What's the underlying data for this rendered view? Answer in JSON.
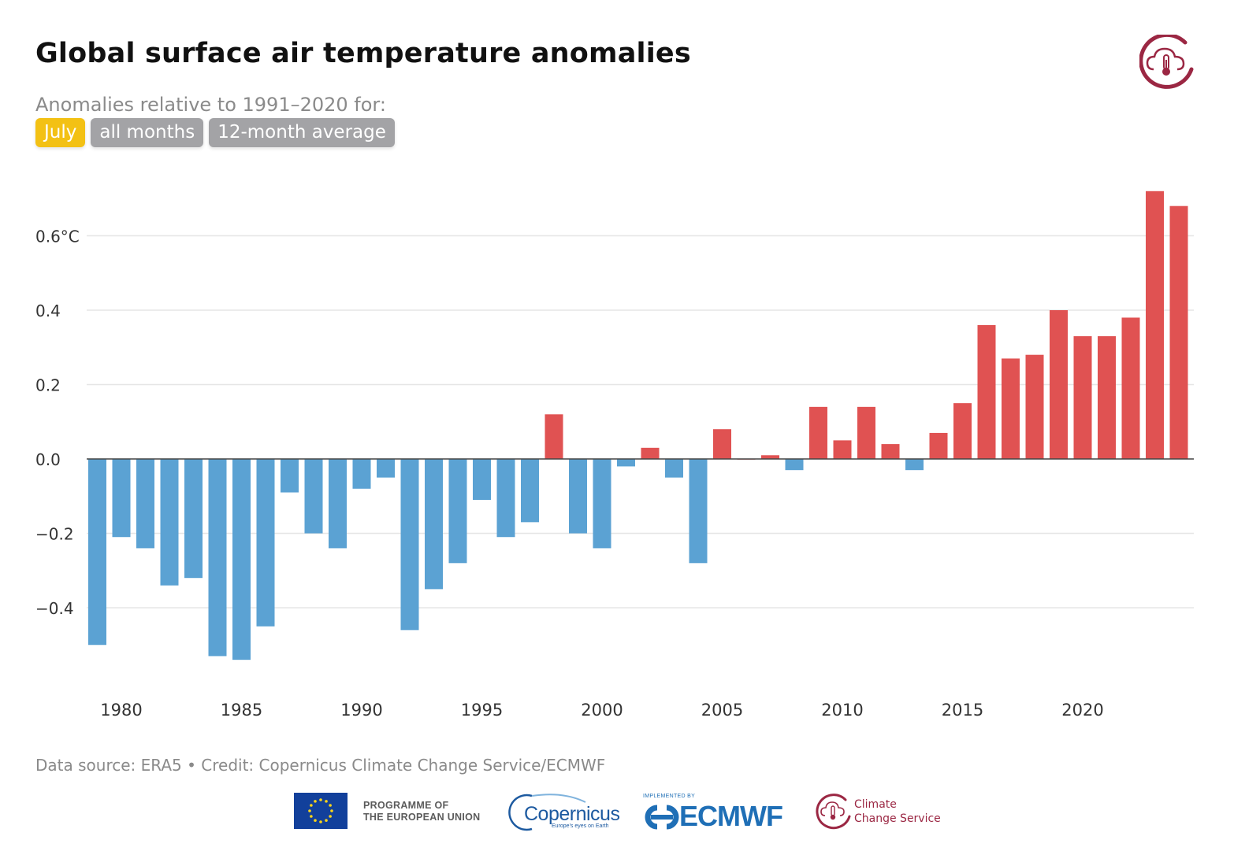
{
  "title": "Global surface air temperature anomalies",
  "subtitle": "Anomalies relative to 1991–2020 for:",
  "toggles": [
    {
      "label": "July",
      "active": true
    },
    {
      "label": "all months",
      "active": false
    },
    {
      "label": "12-month average",
      "active": false
    }
  ],
  "source": "Data source: ERA5 • Credit: Copernicus Climate Change Service/ECMWF",
  "logos": {
    "eu_line1": "PROGRAMME OF",
    "eu_line2": "THE EUROPEAN UNION",
    "copernicus": "Copernicus",
    "copernicus_tagline": "Europe's eyes on Earth",
    "ecmwf_implemented": "IMPLEMENTED BY",
    "ecmwf": "ECMWF",
    "c3s_line1": "Climate",
    "c3s_line2": "Change Service"
  },
  "colors": {
    "positive": "#e05252",
    "negative": "#5ba2d3",
    "active_toggle": "#f3c114",
    "inactive_toggle": "#a3a3a6",
    "brand": "#9b2743"
  },
  "chart_data": {
    "type": "bar",
    "x": [
      1979,
      1980,
      1981,
      1982,
      1983,
      1984,
      1985,
      1986,
      1987,
      1988,
      1989,
      1990,
      1991,
      1992,
      1993,
      1994,
      1995,
      1996,
      1997,
      1998,
      1999,
      2000,
      2001,
      2002,
      2003,
      2004,
      2005,
      2006,
      2007,
      2008,
      2009,
      2010,
      2011,
      2012,
      2013,
      2014,
      2015,
      2016,
      2017,
      2018,
      2019,
      2020,
      2021,
      2022,
      2023,
      2024
    ],
    "values": [
      -0.5,
      -0.21,
      -0.24,
      -0.34,
      -0.32,
      -0.53,
      -0.54,
      -0.45,
      -0.09,
      -0.2,
      -0.24,
      -0.08,
      -0.05,
      -0.46,
      -0.35,
      -0.28,
      -0.11,
      -0.21,
      -0.17,
      0.12,
      -0.2,
      -0.24,
      -0.02,
      0.03,
      -0.05,
      -0.28,
      0.08,
      0.0,
      0.01,
      -0.03,
      0.14,
      0.05,
      0.14,
      0.04,
      -0.03,
      0.07,
      0.15,
      0.36,
      0.27,
      0.28,
      0.4,
      0.33,
      0.33,
      0.38,
      0.72,
      0.68
    ],
    "yticks": [
      -0.4,
      -0.2,
      0.0,
      0.2,
      0.4,
      0.6
    ],
    "ytick_labels": [
      "−0.4",
      "−0.2",
      "0.0",
      "0.2",
      "0.4",
      "0.6°C"
    ],
    "xticks": [
      1980,
      1985,
      1990,
      1995,
      2000,
      2005,
      2010,
      2015,
      2020
    ],
    "ylim": [
      -0.62,
      0.75
    ],
    "grid": true,
    "legend": "none"
  }
}
